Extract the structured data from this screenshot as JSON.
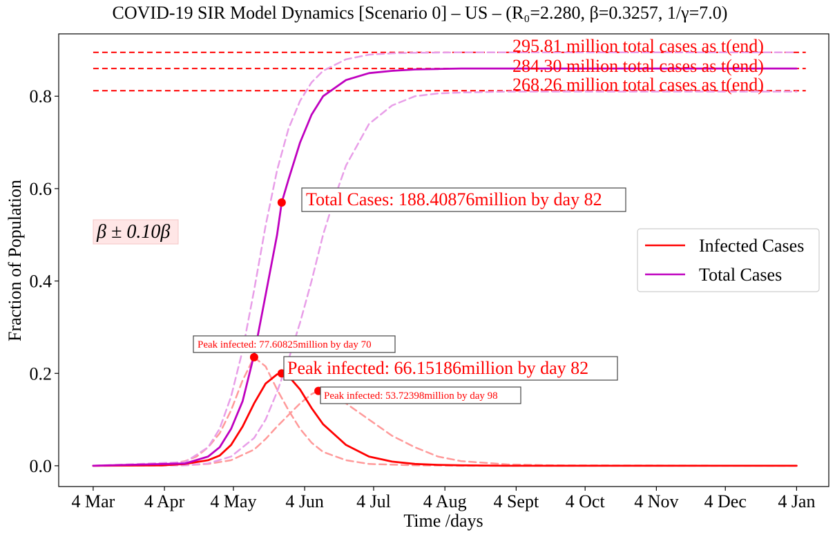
{
  "chart_data": {
    "type": "line",
    "title": "COVID-19 SIR Model Dynamics [Scenario 0] – US – (R₀=2.280, β=0.3257, 1/γ=7.0)",
    "xlabel": "Time /days",
    "ylabel": "Fraction of Population",
    "x_range_days": [
      -15,
      320
    ],
    "ylim": [
      -0.045,
      0.935
    ],
    "x_ticks": [
      {
        "label": "4 Mar",
        "day": 0
      },
      {
        "label": "4 Apr",
        "day": 31
      },
      {
        "label": "4 May",
        "day": 61
      },
      {
        "label": "4 Jun",
        "day": 92
      },
      {
        "label": "4 Jul",
        "day": 122
      },
      {
        "label": "4 Aug",
        "day": 153
      },
      {
        "label": "4 Sept",
        "day": 184
      },
      {
        "label": "4 Oct",
        "day": 214
      },
      {
        "label": "4 Nov",
        "day": 245
      },
      {
        "label": "4 Dec",
        "day": 275
      },
      {
        "label": "4 Jan",
        "day": 306
      }
    ],
    "y_ticks": [
      "0.0",
      "0.2",
      "0.4",
      "0.6",
      "0.8"
    ],
    "y_tick_values": [
      0,
      0.2,
      0.4,
      0.6,
      0.8
    ],
    "grid": false,
    "legend": {
      "placement": "center-right",
      "entries": [
        {
          "label": "Infected Cases",
          "color": "#ff0000"
        },
        {
          "label": "Total Cases",
          "color": "#bf00bf"
        }
      ]
    },
    "series": [
      {
        "name": "Infected Cases",
        "style": "solid",
        "color": "#ff0000",
        "x": [
          0,
          30,
          40,
          50,
          55,
          60,
          65,
          70,
          75,
          80,
          82,
          85,
          90,
          95,
          100,
          110,
          120,
          130,
          140,
          150,
          160,
          180,
          200,
          250,
          306
        ],
        "y": [
          0,
          0.001,
          0.004,
          0.012,
          0.022,
          0.045,
          0.085,
          0.135,
          0.178,
          0.198,
          0.2,
          0.194,
          0.165,
          0.125,
          0.09,
          0.045,
          0.02,
          0.009,
          0.004,
          0.002,
          0.001,
          0,
          0,
          0,
          0
        ]
      },
      {
        "name": "Total Cases",
        "style": "solid",
        "color": "#bf00bf",
        "x": [
          0,
          40,
          50,
          55,
          60,
          65,
          70,
          75,
          80,
          82,
          85,
          90,
          95,
          100,
          110,
          120,
          130,
          140,
          150,
          160,
          180,
          200,
          250,
          306
        ],
        "y": [
          0,
          0.005,
          0.02,
          0.04,
          0.08,
          0.14,
          0.24,
          0.37,
          0.5,
          0.57,
          0.62,
          0.7,
          0.76,
          0.8,
          0.835,
          0.85,
          0.855,
          0.858,
          0.859,
          0.86,
          0.86,
          0.86,
          0.86,
          0.86
        ]
      },
      {
        "style": "dashed",
        "color": "#ff9999",
        "x": [
          0,
          30,
          40,
          45,
          50,
          55,
          60,
          65,
          70,
          75,
          80,
          85,
          90,
          95,
          100,
          110,
          120,
          140,
          160,
          200,
          306
        ],
        "y": [
          0,
          0.002,
          0.01,
          0.02,
          0.04,
          0.07,
          0.12,
          0.185,
          0.235,
          0.215,
          0.165,
          0.12,
          0.08,
          0.05,
          0.03,
          0.012,
          0.004,
          0.001,
          0,
          0,
          0
        ]
      },
      {
        "style": "dashed",
        "color": "#ff9999",
        "x": [
          0,
          40,
          50,
          60,
          70,
          75,
          80,
          85,
          90,
          95,
          98,
          100,
          105,
          110,
          120,
          130,
          140,
          150,
          160,
          180,
          200,
          306
        ],
        "y": [
          0,
          0.001,
          0.004,
          0.012,
          0.035,
          0.058,
          0.085,
          0.11,
          0.135,
          0.155,
          0.162,
          0.16,
          0.15,
          0.135,
          0.1,
          0.065,
          0.04,
          0.02,
          0.01,
          0.003,
          0.001,
          0
        ]
      },
      {
        "style": "dashed",
        "color": "#e89ee8",
        "x": [
          0,
          40,
          50,
          55,
          60,
          65,
          70,
          75,
          80,
          85,
          90,
          95,
          100,
          110,
          120,
          130,
          140,
          160,
          200,
          306
        ],
        "y": [
          0,
          0.008,
          0.04,
          0.08,
          0.15,
          0.25,
          0.38,
          0.52,
          0.64,
          0.73,
          0.79,
          0.83,
          0.855,
          0.88,
          0.89,
          0.893,
          0.894,
          0.895,
          0.895,
          0.895
        ]
      },
      {
        "style": "dashed",
        "color": "#e89ee8",
        "x": [
          0,
          40,
          50,
          60,
          70,
          75,
          80,
          85,
          90,
          95,
          100,
          105,
          110,
          120,
          130,
          140,
          150,
          160,
          180,
          200,
          250,
          306
        ],
        "y": [
          0,
          0.001,
          0.005,
          0.02,
          0.06,
          0.1,
          0.16,
          0.23,
          0.31,
          0.4,
          0.5,
          0.58,
          0.65,
          0.74,
          0.78,
          0.8,
          0.806,
          0.808,
          0.81,
          0.81,
          0.81,
          0.81
        ]
      }
    ],
    "hlines": [
      {
        "y": 0.895,
        "label": "295.81 million total cases as t(end)"
      },
      {
        "y": 0.86,
        "label": "284.30 million total cases as t(end)"
      },
      {
        "y": 0.812,
        "label": "268.26 million total cases as t(end)"
      }
    ],
    "markers": [
      {
        "x": 82,
        "y": 0.57
      },
      {
        "x": 82,
        "y": 0.2
      },
      {
        "x": 70,
        "y": 0.235
      },
      {
        "x": 98,
        "y": 0.162
      }
    ],
    "annotations": [
      {
        "text": "Total Cases: 188.40876million by day 82",
        "size": "large"
      },
      {
        "text": "Peak infected: 66.15186million by day 82",
        "size": "large"
      },
      {
        "text": "Peak infected: 77.60825million by day 70",
        "size": "small"
      },
      {
        "text": "Peak infected: 53.72398million by day 98",
        "size": "small"
      }
    ],
    "side_note": "β ± 0.10β"
  }
}
